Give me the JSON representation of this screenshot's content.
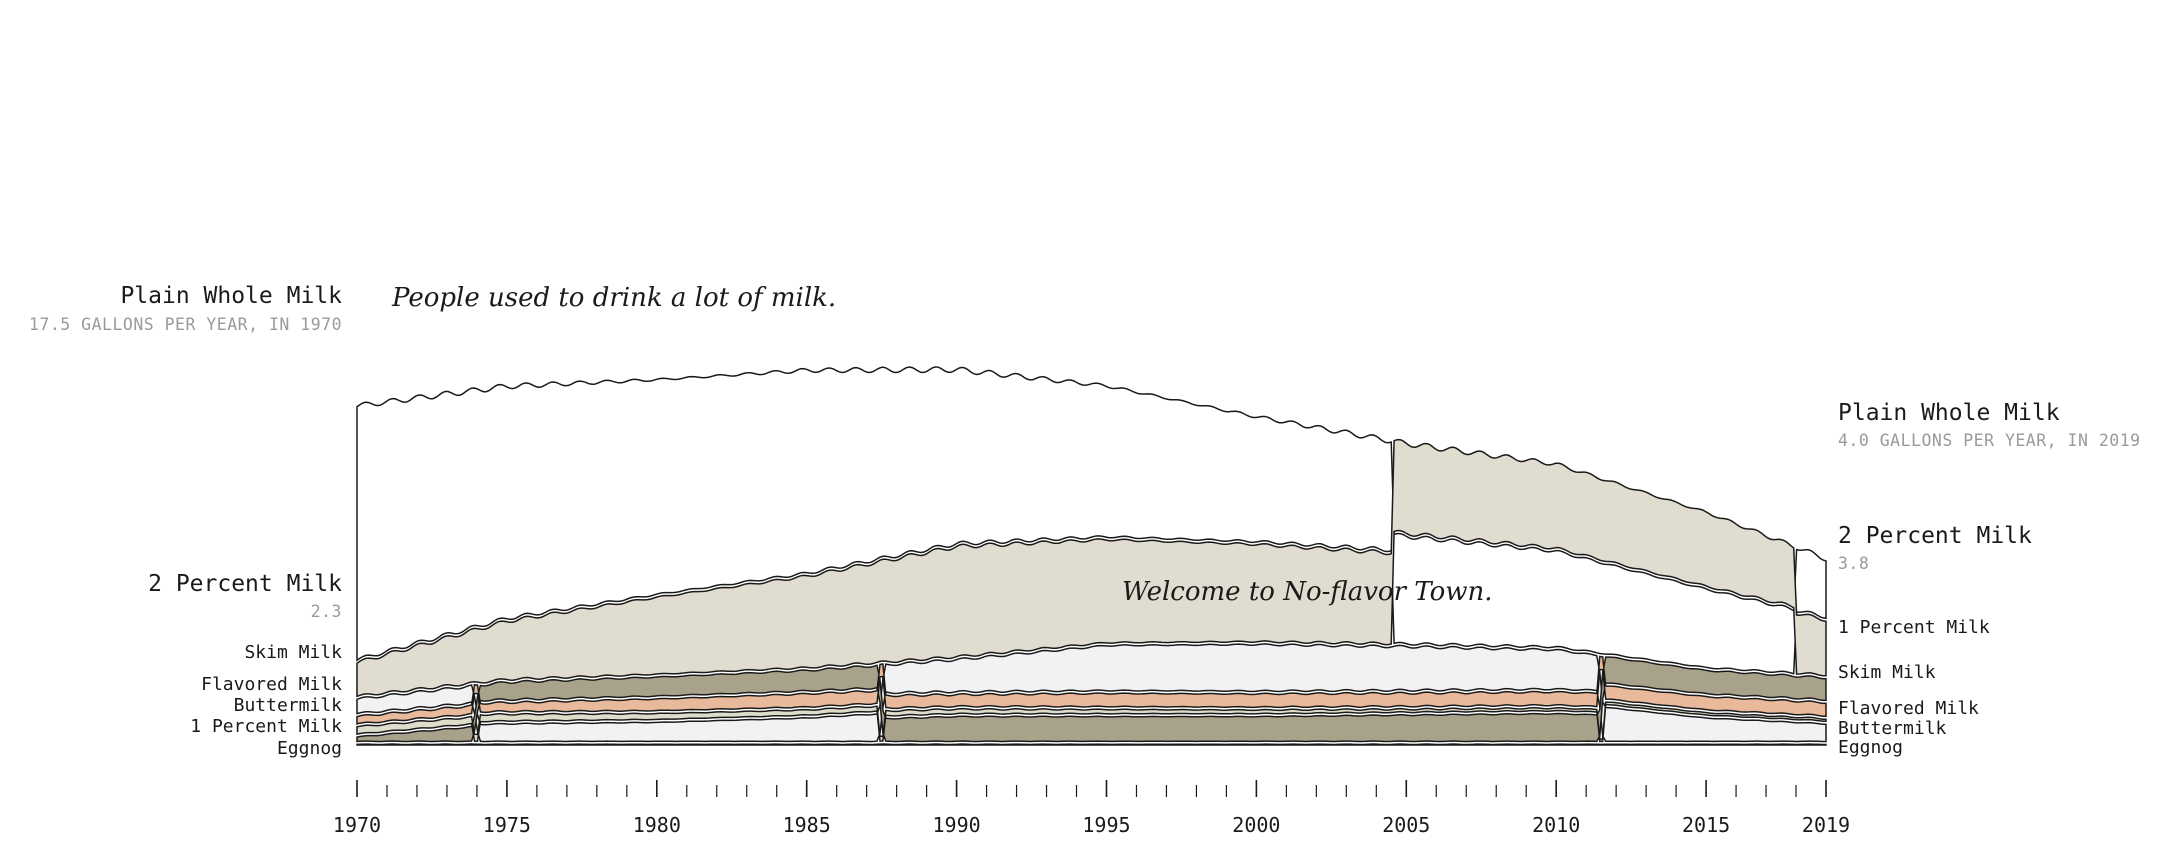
{
  "chart_data": {
    "type": "area",
    "title": "",
    "xlabel": "",
    "ylabel": "",
    "x_range": [
      1970,
      2019
    ],
    "years": [
      1970,
      1975,
      1980,
      1985,
      1990,
      1995,
      2000,
      2005,
      2010,
      2015,
      2019
    ],
    "colors": {
      "plain_whole": "#ffffff",
      "two_percent": "#e0dccf",
      "one_percent": "#a9a28b",
      "skim": "#f2f2f4",
      "flavored": "#e8b99a",
      "buttermilk": "#dedcca",
      "eggnog": "#c6c2a6",
      "outline": "#1a1a1a"
    },
    "series": [
      {
        "key": "plain_whole",
        "name": "Plain Whole Milk",
        "values": [
          17.5,
          16.0,
          14.8,
          14.0,
          12.0,
          10.4,
          8.6,
          7.4,
          6.6,
          5.4,
          4.0
        ]
      },
      {
        "key": "two_percent",
        "name": "2 Percent Milk",
        "values": [
          2.3,
          4.0,
          5.3,
          6.3,
          7.6,
          7.1,
          6.7,
          6.2,
          5.8,
          5.1,
          3.8
        ]
      },
      {
        "key": "one_percent",
        "name": "1 Percent Milk",
        "values": [
          0.3,
          1.2,
          1.3,
          1.4,
          1.7,
          1.7,
          1.7,
          1.8,
          1.9,
          1.6,
          1.5
        ]
      },
      {
        "key": "skim",
        "name": "Skim Milk",
        "values": [
          1.0,
          1.2,
          1.3,
          1.6,
          2.2,
          3.1,
          3.2,
          3.0,
          2.7,
          1.6,
          1.2
        ]
      },
      {
        "key": "flavored",
        "name": "Flavored Milk",
        "values": [
          0.5,
          0.6,
          0.8,
          0.9,
          0.8,
          0.9,
          0.9,
          0.9,
          0.9,
          0.9,
          0.9
        ]
      },
      {
        "key": "buttermilk",
        "name": "Buttermilk",
        "values": [
          0.5,
          0.45,
          0.4,
          0.35,
          0.3,
          0.28,
          0.25,
          0.2,
          0.18,
          0.16,
          0.15
        ]
      },
      {
        "key": "eggnog",
        "name": "Eggnog",
        "values": [
          0.05,
          0.05,
          0.05,
          0.05,
          0.05,
          0.05,
          0.05,
          0.05,
          0.05,
          0.05,
          0.05
        ]
      }
    ],
    "stack_order_top_to_bottom": {
      "1970": [
        "Plain Whole Milk",
        "2 Percent Milk",
        "Skim Milk",
        "Flavored Milk",
        "Buttermilk",
        "1 Percent Milk",
        "Eggnog"
      ],
      "2019": [
        "Plain Whole Milk",
        "2 Percent Milk",
        "1 Percent Milk",
        "Skim Milk",
        "Flavored Milk",
        "Buttermilk",
        "Eggnog"
      ]
    },
    "rank_swaps": [
      {
        "year": 1974,
        "between": [
          "1 Percent Milk",
          "Skim Milk"
        ]
      },
      {
        "year": 1987.5,
        "between": [
          "1 Percent Milk",
          "Skim Milk"
        ]
      },
      {
        "year": 2004.5,
        "between": [
          "Plain Whole Milk",
          "2 Percent Milk"
        ]
      },
      {
        "year": 2011.5,
        "between": [
          "1 Percent Milk",
          "Skim Milk"
        ]
      },
      {
        "year": 2018,
        "between": [
          "Plain Whole Milk",
          "2 Percent Milk"
        ]
      }
    ],
    "tick_labels": [
      "1970",
      "1975",
      "1980",
      "1985",
      "1990",
      "1995",
      "2000",
      "2005",
      "2010",
      "2015",
      "2019"
    ],
    "annotations": {
      "a1": "People used to drink a lot of milk.",
      "a2": "Welcome to No-flavor Town."
    }
  },
  "labels": {
    "left": {
      "plain_whole": "Plain Whole Milk",
      "plain_whole_sub": "17.5 GALLONS PER YEAR, IN 1970",
      "two_percent": "2 Percent Milk",
      "two_percent_sub": "2.3",
      "skim": "Skim Milk",
      "flavored": "Flavored Milk",
      "buttermilk": "Buttermilk",
      "one_percent": "1 Percent Milk",
      "eggnog": "Eggnog"
    },
    "right": {
      "plain_whole": "Plain Whole Milk",
      "plain_whole_sub": "4.0 GALLONS PER YEAR, IN 2019",
      "two_percent": "2 Percent Milk",
      "two_percent_sub": "3.8",
      "one_percent": "1 Percent Milk",
      "skim": "Skim Milk",
      "flavored": "Flavored Milk",
      "buttermilk": "Buttermilk",
      "eggnog": "Eggnog"
    }
  }
}
